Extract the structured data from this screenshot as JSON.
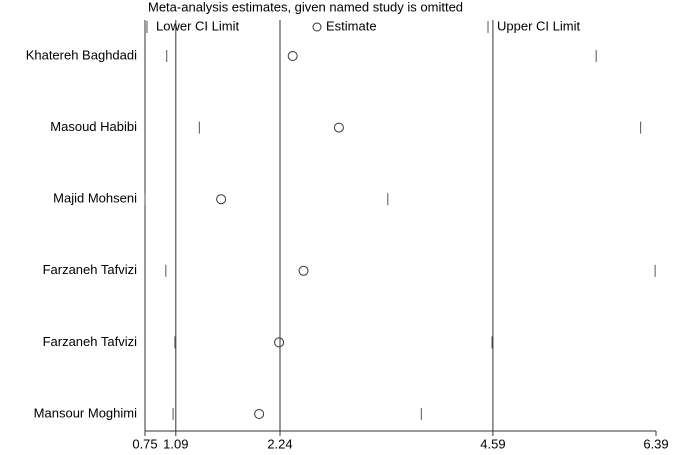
{
  "chart_data": {
    "type": "sensitivity",
    "title": "Meta-analysis estimates, given named study is omitted",
    "categories": [
      "Khatereh Baghdadi",
      "Masoud Habibi",
      "Majid Mohseni",
      "Farzaneh Tafvizi",
      "Farzaneh Tafvizi",
      "Mansour Moghimi"
    ],
    "series": [
      {
        "name": "Lower CI Limit",
        "marker": "tick",
        "color": "#555555",
        "values": [
          0.99,
          1.35,
          0.75,
          0.98,
          1.08,
          1.06
        ]
      },
      {
        "name": "Estimate",
        "marker": "circle",
        "color": "#333333",
        "values": [
          2.38,
          2.89,
          1.59,
          2.5,
          2.23,
          2.01
        ]
      },
      {
        "name": "Upper CI Limit",
        "marker": "tick",
        "color": "#555555",
        "values": [
          5.73,
          6.22,
          3.43,
          6.38,
          4.58,
          3.8
        ]
      }
    ],
    "reference_lines": [
      1.09,
      2.24,
      4.59
    ],
    "xlim": [
      0.75,
      6.39
    ],
    "xticks": [
      0.75,
      1.09,
      2.24,
      4.59,
      6.39
    ]
  }
}
